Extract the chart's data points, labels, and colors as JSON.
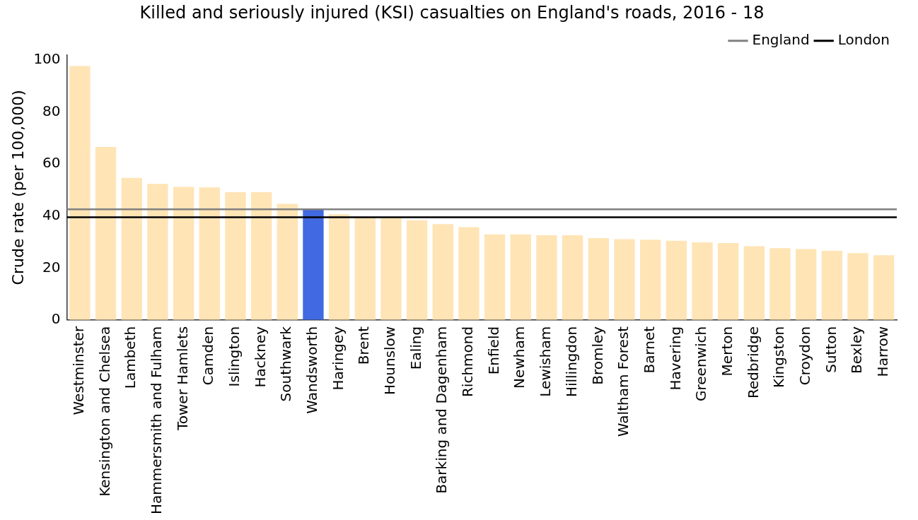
{
  "chart_data": {
    "type": "bar",
    "title": "Killed and seriously injured (KSI) casualties on England's roads, 2016 - 18",
    "ylabel": "Crude rate (per 100,000)",
    "categories": [
      "Westminster",
      "Kensington and Chelsea",
      "Lambeth",
      "Hammersmith and Fulham",
      "Tower Hamlets",
      "Camden",
      "Islington",
      "Hackney",
      "Southwark",
      "Wandsworth",
      "Haringey",
      "Brent",
      "Hounslow",
      "Ealing",
      "Barking and Dagenham",
      "Richmond",
      "Enfield",
      "Newham",
      "Lewisham",
      "Hillingdon",
      "Bromley",
      "Waltham Forest",
      "Barnet",
      "Havering",
      "Greenwich",
      "Merton",
      "Redbridge",
      "Kingston",
      "Croydon",
      "Sutton",
      "Bexley",
      "Harrow"
    ],
    "values": [
      97.7,
      66.6,
      54.7,
      52.4,
      51.2,
      51.0,
      49.2,
      49.2,
      44.7,
      42.6,
      40.7,
      39.5,
      39.2,
      38.4,
      36.9,
      35.7,
      32.9,
      32.9,
      32.6,
      32.6,
      31.5,
      31.1,
      30.9,
      30.5,
      29.9,
      29.6,
      28.4,
      27.6,
      27.3,
      26.6,
      25.7,
      24.9
    ],
    "colors": [
      "#ffe4b5",
      "#ffe4b5",
      "#ffe4b5",
      "#ffe4b5",
      "#ffe4b5",
      "#ffe4b5",
      "#ffe4b5",
      "#ffe4b5",
      "#ffe4b5",
      "#4169e1",
      "#ffe4b5",
      "#ffe4b5",
      "#ffe4b5",
      "#ffe4b5",
      "#ffe4b5",
      "#ffe4b5",
      "#ffe4b5",
      "#ffe4b5",
      "#ffe4b5",
      "#ffe4b5",
      "#ffe4b5",
      "#ffe4b5",
      "#ffe4b5",
      "#ffe4b5",
      "#ffe4b5",
      "#ffe4b5",
      "#ffe4b5",
      "#ffe4b5",
      "#ffe4b5",
      "#ffe4b5",
      "#ffe4b5",
      "#ffe4b5"
    ],
    "ylim": [
      0,
      102
    ],
    "yticks": [
      0,
      20,
      40,
      60,
      80,
      100
    ],
    "grid": false,
    "legend": "top right",
    "ref_lines": [
      {
        "axis": "y",
        "value": 42.6,
        "label": "England",
        "color": "#808080"
      },
      {
        "axis": "y",
        "value": 39.5,
        "label": "London",
        "color": "#000000"
      }
    ]
  }
}
